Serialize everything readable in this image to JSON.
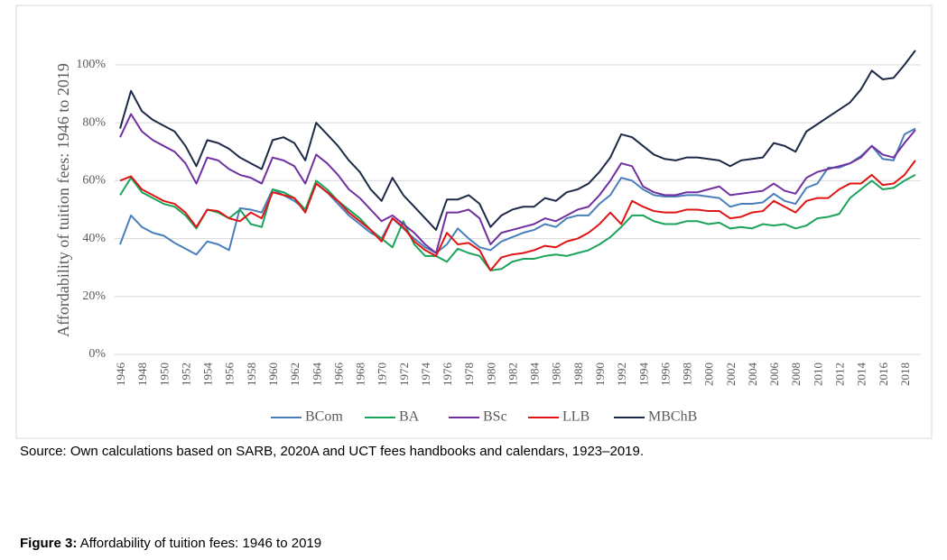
{
  "chart_data": {
    "type": "line",
    "y_label": "Affordability of tuition fees: 1946 to 2019",
    "x": [
      1946,
      1947,
      1948,
      1949,
      1950,
      1951,
      1952,
      1953,
      1954,
      1955,
      1956,
      1957,
      1958,
      1959,
      1960,
      1961,
      1962,
      1963,
      1964,
      1965,
      1966,
      1967,
      1968,
      1969,
      1970,
      1971,
      1972,
      1973,
      1974,
      1975,
      1976,
      1977,
      1978,
      1979,
      1980,
      1981,
      1982,
      1983,
      1984,
      1985,
      1986,
      1987,
      1988,
      1989,
      1990,
      1991,
      1992,
      1993,
      1994,
      1995,
      1996,
      1997,
      1998,
      1999,
      2000,
      2001,
      2002,
      2003,
      2004,
      2005,
      2006,
      2007,
      2008,
      2009,
      2010,
      2011,
      2012,
      2013,
      2014,
      2015,
      2016,
      2017,
      2018,
      2019
    ],
    "xlim": [
      1945.5,
      2019.5
    ],
    "xticks": [
      1946,
      1948,
      1950,
      1952,
      1954,
      1956,
      1958,
      1960,
      1962,
      1964,
      1966,
      1968,
      1970,
      1972,
      1974,
      1976,
      1978,
      1980,
      1982,
      1984,
      1986,
      1988,
      1990,
      1992,
      1994,
      1996,
      1998,
      2000,
      2002,
      2004,
      2006,
      2008,
      2010,
      2012,
      2014,
      2016,
      2018
    ],
    "ylim": [
      0,
      110
    ],
    "yticks": [
      {
        "value": 0,
        "label": "0%"
      },
      {
        "value": 20,
        "label": "20%"
      },
      {
        "value": 40,
        "label": "40%"
      },
      {
        "value": 60,
        "label": "60%"
      },
      {
        "value": 80,
        "label": "80%"
      },
      {
        "value": 100,
        "label": "100%"
      }
    ],
    "grid": true,
    "legend": "bottom",
    "series": [
      {
        "name": "BCom",
        "color": "#4a7ebb",
        "values": [
          38,
          48,
          44,
          42,
          41,
          38.5,
          36.5,
          34.5,
          39,
          38,
          36,
          50.5,
          50,
          49,
          57,
          55,
          53,
          50,
          59,
          56,
          52,
          48,
          45,
          42,
          40,
          47,
          43.5,
          40,
          37,
          35,
          38,
          43.5,
          40,
          37,
          36,
          39,
          40.5,
          42,
          43,
          45,
          44,
          47,
          48,
          48,
          52,
          55,
          61,
          60,
          57,
          55,
          54.5,
          54.5,
          55,
          55,
          54.5,
          54,
          51,
          52,
          52,
          52.5,
          55.5,
          53,
          52,
          57.5,
          59,
          64.5,
          64.5,
          66,
          68.5,
          72,
          67.5,
          67,
          76,
          78
        ]
      },
      {
        "name": "BA",
        "color": "#1aa35a",
        "values": [
          55,
          61,
          56,
          54,
          52,
          51,
          48,
          43.5,
          50,
          49,
          47,
          50,
          45,
          44,
          57,
          56,
          54,
          50,
          60,
          57,
          53,
          50,
          47,
          43,
          40,
          37,
          46,
          38,
          34,
          34,
          32,
          36.5,
          35,
          34,
          29,
          29.5,
          32,
          33,
          33,
          34,
          34.5,
          34,
          35,
          36,
          38,
          40.5,
          44,
          48,
          48,
          46,
          45,
          45,
          46,
          46,
          45,
          45.5,
          43.5,
          44,
          43.5,
          45,
          44.5,
          45,
          43.5,
          44.5,
          47,
          47.5,
          48.5,
          54,
          57,
          60,
          57,
          57.5,
          60,
          62
        ]
      },
      {
        "name": "BSc",
        "color": "#7030a0",
        "values": [
          75,
          83,
          77,
          74,
          72,
          70,
          66,
          59,
          68,
          67,
          64,
          62,
          61,
          59,
          68,
          67,
          65,
          59,
          69,
          66,
          62,
          57,
          54,
          50,
          46,
          48,
          45,
          42,
          38,
          35,
          49,
          49,
          50,
          47,
          38,
          42,
          43,
          44,
          45,
          47,
          46,
          48,
          50,
          51,
          55,
          60,
          66,
          65,
          58,
          56,
          55,
          55,
          56,
          56,
          57,
          58,
          55,
          55.5,
          56,
          56.5,
          59,
          56.5,
          55.5,
          61,
          63,
          64,
          65,
          66,
          68,
          72,
          69,
          68,
          73,
          77.5
        ]
      },
      {
        "name": "LLB",
        "color": "#e01414",
        "values": [
          60,
          61.5,
          57,
          55,
          53,
          52,
          49,
          44,
          50,
          49.5,
          47,
          46,
          49,
          47,
          56,
          55,
          54,
          49,
          59,
          56,
          53,
          49,
          46,
          43,
          39,
          47,
          44,
          39,
          36,
          34,
          42,
          38,
          38.5,
          36,
          29,
          33.5,
          34.5,
          35,
          36,
          37.5,
          37,
          39,
          40,
          42,
          45,
          49,
          45,
          53,
          51,
          49.5,
          49,
          49,
          50,
          50,
          49.5,
          49.5,
          47,
          47.5,
          49,
          49.5,
          53,
          51,
          49,
          53,
          54,
          54,
          57,
          59,
          59,
          62,
          58.5,
          59,
          62,
          67
        ]
      },
      {
        "name": "MBChB",
        "color": "#1c2947",
        "values": [
          78,
          91,
          84,
          81,
          79,
          77,
          72,
          65,
          74,
          73,
          71,
          68,
          66,
          64,
          74,
          75,
          73,
          67,
          80,
          76,
          72,
          67,
          63,
          57,
          53,
          61,
          55,
          51,
          47,
          43,
          53.5,
          53.5,
          55,
          52,
          44,
          48,
          50,
          51,
          51,
          54,
          53,
          56,
          57,
          59,
          63,
          68,
          76,
          75,
          72,
          69,
          67.5,
          67,
          68,
          68,
          67.5,
          67,
          65,
          67,
          67.5,
          68,
          73,
          72,
          70,
          77,
          79.5,
          82,
          84.5,
          87,
          91.5,
          98,
          95,
          95.5,
          100,
          105
        ]
      }
    ]
  },
  "source": "Source: Own calculations based on SARB, 2020A and UCT fees handbooks and calendars, 1923–2019.",
  "figure": {
    "label": "Figure 3:",
    "caption": "Affordability of tuition fees: 1946 to 2019"
  }
}
